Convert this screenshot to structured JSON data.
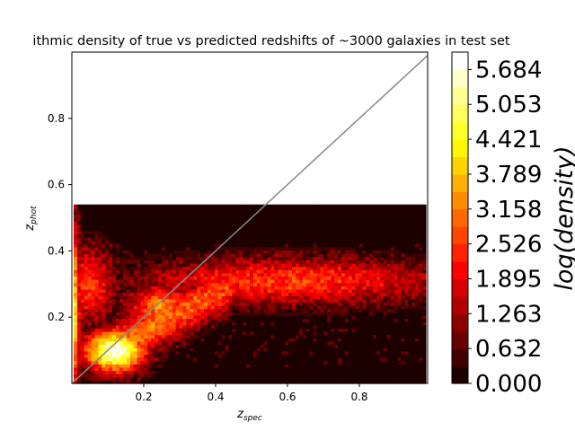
{
  "chart_data": {
    "type": "heatmap",
    "title": "ithmic density of true vs predicted redshifts of ~3000 galaxies in test set",
    "xlabel": {
      "main": "z",
      "sub": "spec"
    },
    "ylabel": {
      "main": "z",
      "sub": "phot"
    },
    "xlim": [
      0.0,
      0.99
    ],
    "ylim": [
      0.0,
      1.0
    ],
    "x_ticks": [
      "0.2",
      "0.4",
      "0.6",
      "0.8"
    ],
    "x_tick_values": [
      0.2,
      0.4,
      0.6,
      0.8
    ],
    "y_ticks": [
      "0.2",
      "0.4",
      "0.6",
      "0.8"
    ],
    "y_tick_values": [
      0.2,
      0.4,
      0.6,
      0.8
    ],
    "data_extent": {
      "x": [
        0.005,
        0.985
      ],
      "y": [
        0.0,
        0.54
      ]
    },
    "reference_line": {
      "from": [
        0.0,
        0.0
      ],
      "to": [
        1.0,
        1.0
      ],
      "color": "#888888"
    },
    "colorbar": {
      "label": "log(density)",
      "levels": [
        0.0,
        0.632,
        1.263,
        1.895,
        2.526,
        3.158,
        3.789,
        4.421,
        5.053,
        5.684
      ],
      "tick_labels": [
        "0.000",
        "0.632",
        "1.263",
        "1.895",
        "2.526",
        "3.158",
        "3.789",
        "4.421",
        "5.053",
        "5.684"
      ],
      "max": 6.0,
      "colormap": "hot"
    },
    "features": [
      {
        "name": "core",
        "x": 0.12,
        "y": 0.1,
        "sx": 0.06,
        "sy": 0.045,
        "peak": 5.9
      },
      {
        "name": "low-zspec-vertical-streak",
        "x": 0.005,
        "y": 0.22,
        "sx": 0.012,
        "sy": 0.18,
        "peak": 4.4
      },
      {
        "name": "rising-ridge",
        "x": 0.25,
        "y": 0.23,
        "sx": 0.07,
        "sy": 0.05,
        "peak": 3.2
      },
      {
        "name": "horizontal-band",
        "x": 0.6,
        "y": 0.31,
        "sx": 0.3,
        "sy": 0.05,
        "peak": 2.6
      },
      {
        "name": "left-diffuse",
        "x": 0.05,
        "y": 0.3,
        "sx": 0.05,
        "sy": 0.08,
        "peak": 2.6
      }
    ]
  }
}
